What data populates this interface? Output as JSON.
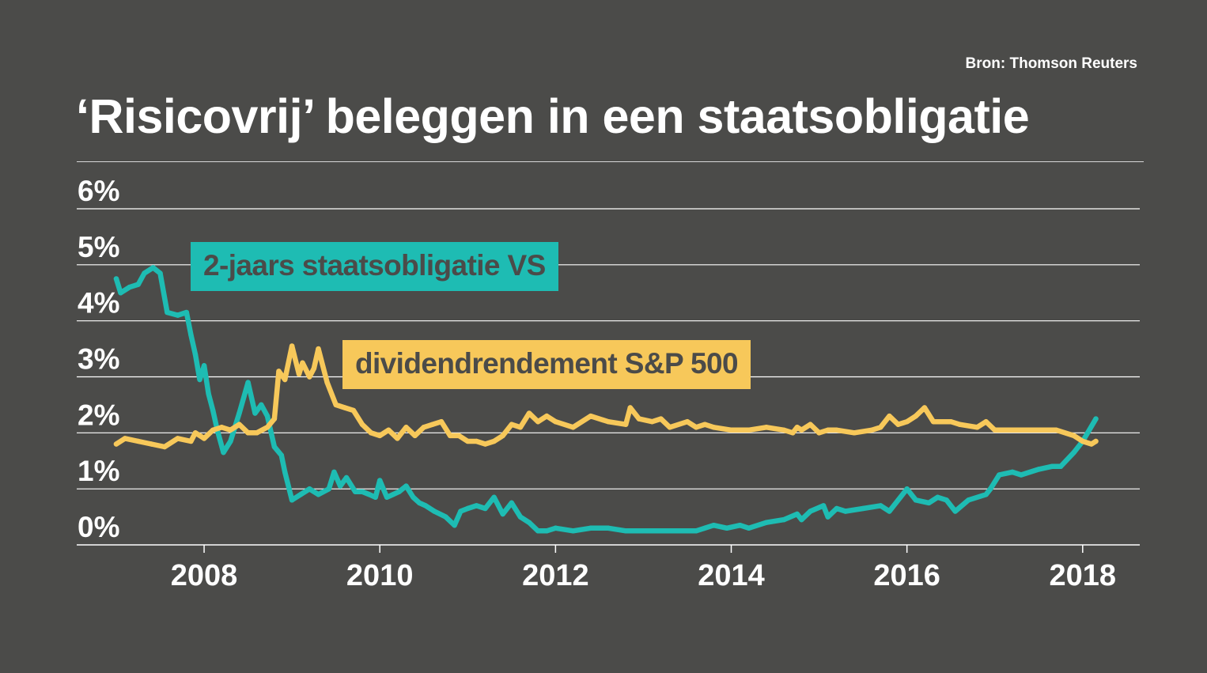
{
  "source": "Bron: Thomson Reuters",
  "title": "‘Risicovrij’ beleggen in een staatsobligatie",
  "colors": {
    "background": "#4b4b49",
    "treasury": "#1ebcb3",
    "sp500": "#f7c85a",
    "grid": "#ffffff",
    "text": "#ffffff"
  },
  "chart_data": {
    "type": "line",
    "title": "‘Risicovrij’ beleggen in een staatsobligatie",
    "xlabel": "",
    "ylabel": "",
    "xlim": [
      2006.55,
      2018.65
    ],
    "ylim": [
      0,
      6
    ],
    "y_ticks": [
      0,
      1,
      2,
      3,
      4,
      5,
      6
    ],
    "y_tick_labels": [
      "0%",
      "1%",
      "2%",
      "3%",
      "4%",
      "5%",
      "6%"
    ],
    "x_ticks": [
      2008,
      2010,
      2012,
      2014,
      2016,
      2018
    ],
    "x_tick_labels": [
      "2008",
      "2010",
      "2012",
      "2014",
      "2016",
      "2018"
    ],
    "grid": true,
    "legend": "inline labels",
    "series": [
      {
        "name": "2-jaars staatsobligatie VS",
        "color": "#1ebcb3",
        "x": [
          2007.0,
          2007.05,
          2007.15,
          2007.25,
          2007.32,
          2007.42,
          2007.5,
          2007.58,
          2007.7,
          2007.8,
          2007.85,
          2007.9,
          2007.95,
          2008.0,
          2008.05,
          2008.1,
          2008.15,
          2008.22,
          2008.3,
          2008.4,
          2008.5,
          2008.58,
          2008.65,
          2008.72,
          2008.8,
          2008.88,
          2008.92,
          2009.0,
          2009.1,
          2009.2,
          2009.3,
          2009.42,
          2009.48,
          2009.55,
          2009.62,
          2009.72,
          2009.8,
          2009.88,
          2009.95,
          2010.0,
          2010.08,
          2010.15,
          2010.22,
          2010.3,
          2010.38,
          2010.45,
          2010.52,
          2010.62,
          2010.75,
          2010.85,
          2010.92,
          2011.0,
          2011.1,
          2011.2,
          2011.3,
          2011.4,
          2011.5,
          2011.6,
          2011.7,
          2011.8,
          2011.9,
          2012.0,
          2012.2,
          2012.4,
          2012.6,
          2012.8,
          2013.0,
          2013.3,
          2013.6,
          2013.8,
          2013.95,
          2014.1,
          2014.2,
          2014.4,
          2014.6,
          2014.75,
          2014.8,
          2014.9,
          2015.05,
          2015.1,
          2015.2,
          2015.3,
          2015.5,
          2015.7,
          2015.8,
          2016.0,
          2016.1,
          2016.25,
          2016.35,
          2016.45,
          2016.55,
          2016.7,
          2016.9,
          2016.95,
          2017.05,
          2017.2,
          2017.3,
          2017.5,
          2017.65,
          2017.75,
          2017.9,
          2018.0,
          2018.15
        ],
        "values": [
          4.75,
          4.5,
          4.6,
          4.65,
          4.85,
          4.95,
          4.85,
          4.15,
          4.1,
          4.15,
          3.75,
          3.4,
          2.95,
          3.2,
          2.7,
          2.4,
          2.05,
          1.65,
          1.85,
          2.35,
          2.9,
          2.35,
          2.5,
          2.3,
          1.75,
          1.6,
          1.3,
          0.8,
          0.9,
          1.0,
          0.9,
          1.0,
          1.3,
          1.05,
          1.2,
          0.95,
          0.95,
          0.9,
          0.85,
          1.15,
          0.85,
          0.9,
          0.95,
          1.05,
          0.85,
          0.75,
          0.7,
          0.6,
          0.5,
          0.35,
          0.6,
          0.65,
          0.7,
          0.65,
          0.85,
          0.55,
          0.75,
          0.5,
          0.4,
          0.25,
          0.25,
          0.3,
          0.25,
          0.3,
          0.3,
          0.25,
          0.25,
          0.25,
          0.25,
          0.35,
          0.3,
          0.35,
          0.3,
          0.4,
          0.45,
          0.55,
          0.45,
          0.6,
          0.7,
          0.5,
          0.65,
          0.6,
          0.65,
          0.7,
          0.6,
          1.0,
          0.8,
          0.75,
          0.85,
          0.8,
          0.6,
          0.8,
          0.9,
          1.0,
          1.25,
          1.3,
          1.25,
          1.35,
          1.4,
          1.4,
          1.65,
          1.85,
          2.25
        ]
      },
      {
        "name": "dividendrendement S&P 500",
        "color": "#f7c85a",
        "x": [
          2007.0,
          2007.1,
          2007.25,
          2007.4,
          2007.55,
          2007.7,
          2007.85,
          2007.9,
          2008.0,
          2008.1,
          2008.2,
          2008.3,
          2008.4,
          2008.5,
          2008.6,
          2008.72,
          2008.8,
          2008.85,
          2008.92,
          2009.0,
          2009.08,
          2009.12,
          2009.2,
          2009.25,
          2009.3,
          2009.4,
          2009.5,
          2009.6,
          2009.7,
          2009.8,
          2009.9,
          2010.0,
          2010.1,
          2010.2,
          2010.3,
          2010.4,
          2010.5,
          2010.6,
          2010.7,
          2010.8,
          2010.9,
          2011.0,
          2011.1,
          2011.2,
          2011.3,
          2011.4,
          2011.5,
          2011.6,
          2011.7,
          2011.8,
          2011.9,
          2012.0,
          2012.2,
          2012.4,
          2012.6,
          2012.8,
          2012.85,
          2012.95,
          2013.1,
          2013.2,
          2013.3,
          2013.5,
          2013.6,
          2013.7,
          2013.8,
          2014.0,
          2014.2,
          2014.4,
          2014.6,
          2014.7,
          2014.75,
          2014.8,
          2014.9,
          2015.0,
          2015.1,
          2015.2,
          2015.4,
          2015.6,
          2015.7,
          2015.8,
          2015.9,
          2016.0,
          2016.1,
          2016.2,
          2016.3,
          2016.5,
          2016.6,
          2016.8,
          2016.9,
          2017.0,
          2017.2,
          2017.5,
          2017.7,
          2017.9,
          2018.0,
          2018.1,
          2018.15
        ],
        "values": [
          1.8,
          1.9,
          1.85,
          1.8,
          1.75,
          1.9,
          1.85,
          2.0,
          1.9,
          2.05,
          2.1,
          2.05,
          2.15,
          2.0,
          2.0,
          2.1,
          2.25,
          3.1,
          2.95,
          3.55,
          3.05,
          3.25,
          3.0,
          3.15,
          3.5,
          2.9,
          2.5,
          2.45,
          2.4,
          2.15,
          2.0,
          1.95,
          2.05,
          1.9,
          2.1,
          1.95,
          2.1,
          2.15,
          2.2,
          1.95,
          1.95,
          1.85,
          1.85,
          1.8,
          1.85,
          1.95,
          2.15,
          2.1,
          2.35,
          2.2,
          2.3,
          2.2,
          2.1,
          2.3,
          2.2,
          2.15,
          2.45,
          2.25,
          2.2,
          2.25,
          2.1,
          2.2,
          2.1,
          2.15,
          2.1,
          2.05,
          2.05,
          2.1,
          2.05,
          2.0,
          2.1,
          2.05,
          2.15,
          2.0,
          2.05,
          2.05,
          2.0,
          2.05,
          2.1,
          2.3,
          2.15,
          2.2,
          2.3,
          2.45,
          2.2,
          2.2,
          2.15,
          2.1,
          2.2,
          2.05,
          2.05,
          2.05,
          2.05,
          1.95,
          1.85,
          1.8,
          1.85
        ]
      }
    ]
  }
}
